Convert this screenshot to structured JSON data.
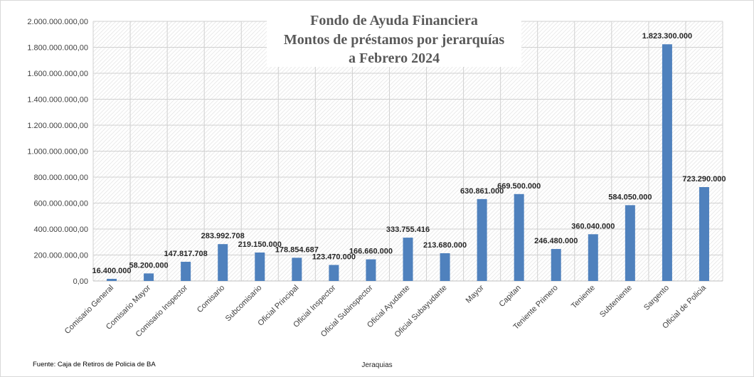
{
  "chart_data": {
    "type": "bar",
    "title": [
      "Fondo de Ayuda Financiera",
      "Montos de préstamos por jerarquías",
      "a  Febrero 2024"
    ],
    "xlabel": "Jeraquias",
    "ylabel": "",
    "ylim": [
      0,
      2000000000
    ],
    "yticks": [
      {
        "value": 0,
        "label": "0,00"
      },
      {
        "value": 200000000,
        "label": "200.000.000,00"
      },
      {
        "value": 400000000,
        "label": "400.000.000,00"
      },
      {
        "value": 600000000,
        "label": "600.000.000,00"
      },
      {
        "value": 800000000,
        "label": "800.000.000,00"
      },
      {
        "value": 1000000000,
        "label": "1.000.000.000,00"
      },
      {
        "value": 1200000000,
        "label": "1.200.000.000,00"
      },
      {
        "value": 1400000000,
        "label": "1.400.000.000,00"
      },
      {
        "value": 1600000000,
        "label": "1.600.000.000,00"
      },
      {
        "value": 1800000000,
        "label": "1.800.000.000,00"
      },
      {
        "value": 2000000000,
        "label": "2.000.000.000,00"
      }
    ],
    "categories": [
      "Comisario General",
      "Comisario Mayor",
      "Comisario Inspector",
      "Comisario",
      "Subcomisario",
      "Oficial Principal",
      "Oficial Inspector",
      "Oficial Subinspector",
      "Oficial Ayudante",
      "Oficial Subayudante",
      "Mayor",
      "Capitan",
      "Teniente Primero",
      "Teniente",
      "Subteniente",
      "Sargento",
      "Oficial de Policia"
    ],
    "values": [
      16400000,
      58200000,
      147817708,
      283992708,
      219150000,
      178854687,
      123470000,
      166660000,
      333755416,
      213680000,
      630861000,
      669500000,
      246480000,
      360040000,
      584050000,
      1823300000,
      723290000
    ],
    "data_labels": [
      "16.400.000",
      "58.200.000",
      "147.817.708",
      "283.992.708",
      "219.150.000",
      "178.854.687",
      "123.470.000",
      "166.660.000",
      "333.755.416",
      "213.680.000",
      "630.861.000",
      "669.500.000",
      "246.480.000",
      "360.040.000",
      "584.050.000",
      "1.823.300.000",
      "723.290.000"
    ],
    "bar_color": "#4f81bd",
    "grid": true,
    "legend": "none"
  },
  "footer": {
    "source": "Fuente: Caja de Retiros de Policia de BA"
  }
}
